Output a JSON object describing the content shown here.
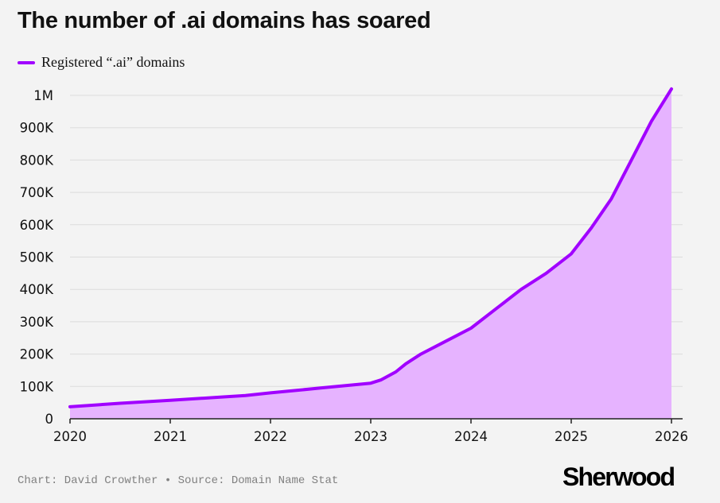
{
  "title": "The number of .ai domains has soared",
  "footer": {
    "credit": "Chart: David Crowther",
    "separator": "•",
    "source": "Source: Domain Name Stat"
  },
  "brand": "Sherwood",
  "colors": {
    "line": "#a100ff",
    "fill": "#e6b3ff",
    "background": "#f3f3f3",
    "grid": "#dcdcdc"
  },
  "chart_data": {
    "type": "area",
    "title": "The number of .ai domains has soared",
    "series": [
      {
        "name": "Registered “.ai” domains",
        "x": [
          2020.0,
          2020.5,
          2021.0,
          2021.5,
          2021.75,
          2022.0,
          2022.5,
          2023.0,
          2023.1,
          2023.25,
          2023.35,
          2023.5,
          2023.75,
          2024.0,
          2024.25,
          2024.5,
          2024.75,
          2025.0,
          2025.2,
          2025.4,
          2025.6,
          2025.8,
          2026.0
        ],
        "values": [
          37000,
          48000,
          57000,
          67000,
          72000,
          80000,
          95000,
          110000,
          120000,
          145000,
          170000,
          200000,
          240000,
          280000,
          340000,
          400000,
          450000,
          510000,
          590000,
          680000,
          800000,
          920000,
          1020000
        ]
      }
    ],
    "x_ticks": [
      "2020",
      "2021",
      "2022",
      "2023",
      "2024",
      "2025",
      "2026"
    ],
    "x_tick_values": [
      2020,
      2021,
      2022,
      2023,
      2024,
      2025,
      2026
    ],
    "y_ticks": [
      "0",
      "100K",
      "200K",
      "300K",
      "400K",
      "500K",
      "600K",
      "700K",
      "800K",
      "900K",
      "1M"
    ],
    "y_tick_values": [
      0,
      100000,
      200000,
      300000,
      400000,
      500000,
      600000,
      700000,
      800000,
      900000,
      1000000
    ],
    "xlim": [
      2020,
      2026
    ],
    "ylim": [
      0,
      1000000
    ],
    "grid": true,
    "legend": "top-left"
  }
}
